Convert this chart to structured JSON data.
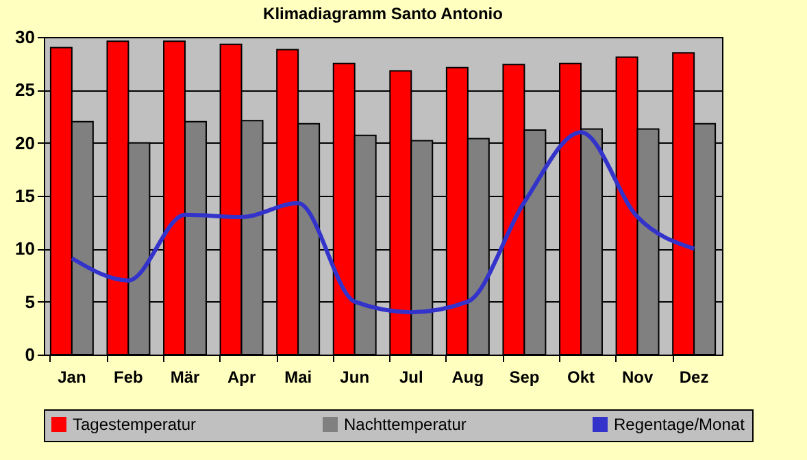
{
  "chart_data": {
    "type": "bar",
    "title": "Klimadiagramm Santo Antonio",
    "categories": [
      "Jan",
      "Feb",
      "Mär",
      "Apr",
      "Mai",
      "Jun",
      "Jul",
      "Aug",
      "Sep",
      "Okt",
      "Nov",
      "Dez"
    ],
    "series": [
      {
        "name": "Tagestemperatur",
        "color": "#ff0000",
        "values": [
          29,
          29.6,
          29.6,
          29.3,
          28.8,
          27.5,
          26.8,
          27.1,
          27.4,
          27.5,
          28.1,
          28.5
        ]
      },
      {
        "name": "Nachttemperatur",
        "color": "#808080",
        "values": [
          22,
          20,
          22,
          22.1,
          21.8,
          20.7,
          20.2,
          20.4,
          21.2,
          21.3,
          21.3,
          21.8
        ]
      },
      {
        "name": "Regentage/Monat",
        "type": "line",
        "color": "#3333cc",
        "marker": "none",
        "values": [
          9.1,
          7,
          13.2,
          13,
          14.3,
          5,
          4,
          5,
          14.4,
          21,
          13,
          10
        ]
      }
    ],
    "ylim": [
      0,
      30
    ],
    "yticks": [
      0,
      5,
      10,
      15,
      20,
      25,
      30
    ],
    "grid": "y",
    "legend": "bottom"
  }
}
